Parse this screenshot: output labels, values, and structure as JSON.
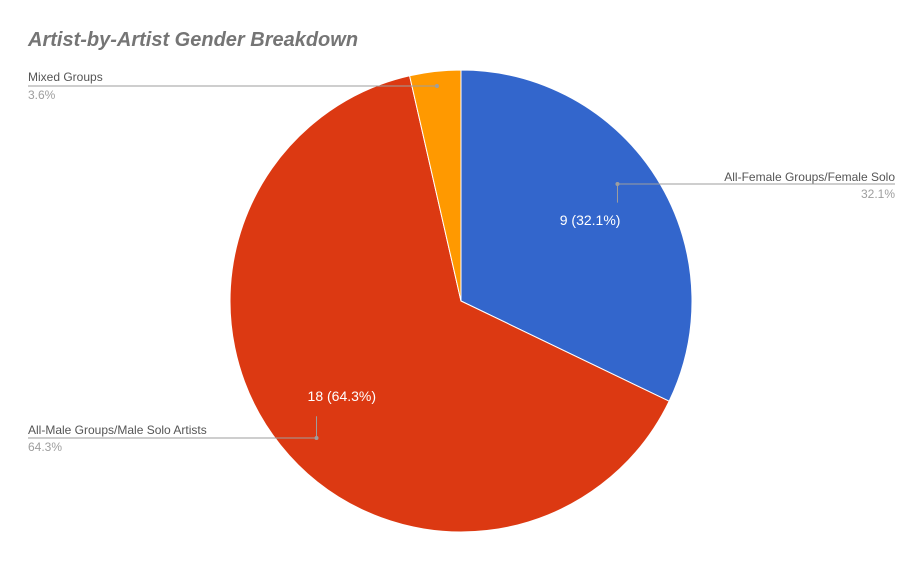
{
  "chart_data": {
    "type": "pie",
    "title": "Artist-by-Artist Gender Breakdown",
    "legend_position": "outside-labels",
    "slices": [
      {
        "name": "All-Female Groups/Female Solo",
        "value": 9,
        "percent_label": "32.1%",
        "inner_label": "9 (32.1%)",
        "color": "#3366cc"
      },
      {
        "name": "All-Male Groups/Male Solo Artists",
        "value": 18,
        "percent_label": "64.3%",
        "inner_label": "18 (64.3%)",
        "color": "#dc3912"
      },
      {
        "name": "Mixed Groups",
        "value": 1,
        "percent_label": "3.6%",
        "inner_label": "",
        "color": "#ff9900"
      }
    ]
  }
}
